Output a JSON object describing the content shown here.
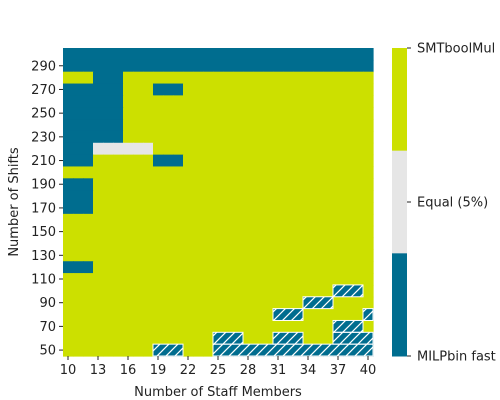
{
  "chart_data": {
    "type": "heatmap",
    "xlabel": "Number of Staff Members",
    "ylabel": "Number of Shifts",
    "x": [
      10,
      11,
      12,
      13,
      14,
      15,
      16,
      17,
      18,
      19,
      20,
      21,
      22,
      23,
      24,
      25,
      26,
      27,
      28,
      29,
      30,
      31,
      32,
      33,
      34,
      35,
      36,
      37,
      38,
      39,
      40
    ],
    "x_tick_labels": [
      "10",
      "13",
      "16",
      "19",
      "22",
      "25",
      "28",
      "31",
      "34",
      "37",
      "40"
    ],
    "y": [
      300,
      290,
      280,
      270,
      260,
      250,
      240,
      230,
      220,
      210,
      200,
      190,
      180,
      170,
      160,
      150,
      140,
      130,
      120,
      110,
      100,
      90,
      80,
      70,
      60,
      50
    ],
    "y_tick_labels": [
      "290",
      "270",
      "250",
      "230",
      "210",
      "190",
      "170",
      "150",
      "130",
      "110",
      "90",
      "70",
      "50"
    ],
    "colorbar": {
      "labels": [
        "SMTboolMul",
        "Equal (5%)",
        "MILPbin fast"
      ],
      "colors": [
        "#cce000",
        "#e6e6e6",
        "#006d8f"
      ]
    },
    "grid_code": "0 = SMTboolMul, 1 = Equal (5%), 2 = MILPbin fast, 3 = MILPbin fast (hatched)",
    "grid": [
      [
        2,
        2,
        2,
        2,
        2,
        2,
        2,
        2,
        2,
        2,
        2,
        2,
        2,
        2,
        2,
        2,
        2,
        2,
        2,
        2,
        2,
        2,
        2,
        2,
        2,
        2,
        2,
        2,
        2,
        2,
        2
      ],
      [
        2,
        2,
        2,
        2,
        2,
        2,
        2,
        2,
        2,
        2,
        2,
        2,
        2,
        2,
        2,
        2,
        2,
        2,
        2,
        2,
        2,
        2,
        2,
        2,
        2,
        2,
        2,
        2,
        2,
        2,
        2
      ],
      [
        0,
        0,
        0,
        2,
        2,
        2,
        0,
        0,
        0,
        0,
        0,
        0,
        0,
        0,
        0,
        0,
        0,
        0,
        0,
        0,
        0,
        0,
        0,
        0,
        0,
        0,
        0,
        0,
        0,
        0,
        0
      ],
      [
        2,
        2,
        2,
        2,
        2,
        2,
        0,
        0,
        0,
        2,
        2,
        2,
        0,
        0,
        0,
        0,
        0,
        0,
        0,
        0,
        0,
        0,
        0,
        0,
        0,
        0,
        0,
        0,
        0,
        0,
        0
      ],
      [
        2,
        2,
        2,
        2,
        2,
        2,
        0,
        0,
        0,
        0,
        0,
        0,
        0,
        0,
        0,
        0,
        0,
        0,
        0,
        0,
        0,
        0,
        0,
        0,
        0,
        0,
        0,
        0,
        0,
        0,
        0
      ],
      [
        2,
        2,
        2,
        2,
        2,
        2,
        0,
        0,
        0,
        0,
        0,
        0,
        0,
        0,
        0,
        0,
        0,
        0,
        0,
        0,
        0,
        0,
        0,
        0,
        0,
        0,
        0,
        0,
        0,
        0,
        0
      ],
      [
        2,
        2,
        2,
        2,
        2,
        2,
        0,
        0,
        0,
        0,
        0,
        0,
        0,
        0,
        0,
        0,
        0,
        0,
        0,
        0,
        0,
        0,
        0,
        0,
        0,
        0,
        0,
        0,
        0,
        0,
        0
      ],
      [
        2,
        2,
        2,
        2,
        2,
        2,
        0,
        0,
        0,
        0,
        0,
        0,
        0,
        0,
        0,
        0,
        0,
        0,
        0,
        0,
        0,
        0,
        0,
        0,
        0,
        0,
        0,
        0,
        0,
        0,
        0
      ],
      [
        2,
        2,
        2,
        1,
        1,
        1,
        1,
        1,
        1,
        0,
        0,
        0,
        0,
        0,
        0,
        0,
        0,
        0,
        0,
        0,
        0,
        0,
        0,
        0,
        0,
        0,
        0,
        0,
        0,
        0,
        0
      ],
      [
        2,
        2,
        2,
        0,
        0,
        0,
        0,
        0,
        0,
        2,
        2,
        2,
        0,
        0,
        0,
        0,
        0,
        0,
        0,
        0,
        0,
        0,
        0,
        0,
        0,
        0,
        0,
        0,
        0,
        0,
        0
      ],
      [
        0,
        0,
        0,
        0,
        0,
        0,
        0,
        0,
        0,
        0,
        0,
        0,
        0,
        0,
        0,
        0,
        0,
        0,
        0,
        0,
        0,
        0,
        0,
        0,
        0,
        0,
        0,
        0,
        0,
        0,
        0
      ],
      [
        2,
        2,
        2,
        0,
        0,
        0,
        0,
        0,
        0,
        0,
        0,
        0,
        0,
        0,
        0,
        0,
        0,
        0,
        0,
        0,
        0,
        0,
        0,
        0,
        0,
        0,
        0,
        0,
        0,
        0,
        0
      ],
      [
        2,
        2,
        2,
        0,
        0,
        0,
        0,
        0,
        0,
        0,
        0,
        0,
        0,
        0,
        0,
        0,
        0,
        0,
        0,
        0,
        0,
        0,
        0,
        0,
        0,
        0,
        0,
        0,
        0,
        0,
        0
      ],
      [
        2,
        2,
        2,
        0,
        0,
        0,
        0,
        0,
        0,
        0,
        0,
        0,
        0,
        0,
        0,
        0,
        0,
        0,
        0,
        0,
        0,
        0,
        0,
        0,
        0,
        0,
        0,
        0,
        0,
        0,
        0
      ],
      [
        0,
        0,
        0,
        0,
        0,
        0,
        0,
        0,
        0,
        0,
        0,
        0,
        0,
        0,
        0,
        0,
        0,
        0,
        0,
        0,
        0,
        0,
        0,
        0,
        0,
        0,
        0,
        0,
        0,
        0,
        0
      ],
      [
        0,
        0,
        0,
        0,
        0,
        0,
        0,
        0,
        0,
        0,
        0,
        0,
        0,
        0,
        0,
        0,
        0,
        0,
        0,
        0,
        0,
        0,
        0,
        0,
        0,
        0,
        0,
        0,
        0,
        0,
        0
      ],
      [
        0,
        0,
        0,
        0,
        0,
        0,
        0,
        0,
        0,
        0,
        0,
        0,
        0,
        0,
        0,
        0,
        0,
        0,
        0,
        0,
        0,
        0,
        0,
        0,
        0,
        0,
        0,
        0,
        0,
        0,
        0
      ],
      [
        0,
        0,
        0,
        0,
        0,
        0,
        0,
        0,
        0,
        0,
        0,
        0,
        0,
        0,
        0,
        0,
        0,
        0,
        0,
        0,
        0,
        0,
        0,
        0,
        0,
        0,
        0,
        0,
        0,
        0,
        0
      ],
      [
        2,
        2,
        2,
        0,
        0,
        0,
        0,
        0,
        0,
        0,
        0,
        0,
        0,
        0,
        0,
        0,
        0,
        0,
        0,
        0,
        0,
        0,
        0,
        0,
        0,
        0,
        0,
        0,
        0,
        0,
        0
      ],
      [
        0,
        0,
        0,
        0,
        0,
        0,
        0,
        0,
        0,
        0,
        0,
        0,
        0,
        0,
        0,
        0,
        0,
        0,
        0,
        0,
        0,
        0,
        0,
        0,
        0,
        0,
        0,
        0,
        0,
        0,
        0
      ],
      [
        0,
        0,
        0,
        0,
        0,
        0,
        0,
        0,
        0,
        0,
        0,
        0,
        0,
        0,
        0,
        0,
        0,
        0,
        0,
        0,
        0,
        0,
        0,
        0,
        0,
        0,
        0,
        3,
        3,
        3,
        0
      ],
      [
        0,
        0,
        0,
        0,
        0,
        0,
        0,
        0,
        0,
        0,
        0,
        0,
        0,
        0,
        0,
        0,
        0,
        0,
        0,
        0,
        0,
        0,
        0,
        0,
        3,
        3,
        3,
        0,
        0,
        0,
        0
      ],
      [
        0,
        0,
        0,
        0,
        0,
        0,
        0,
        0,
        0,
        0,
        0,
        0,
        0,
        0,
        0,
        0,
        0,
        0,
        0,
        0,
        0,
        3,
        3,
        3,
        0,
        0,
        0,
        0,
        0,
        0,
        3
      ],
      [
        0,
        0,
        0,
        0,
        0,
        0,
        0,
        0,
        0,
        0,
        0,
        0,
        0,
        0,
        0,
        0,
        0,
        0,
        0,
        0,
        0,
        0,
        0,
        0,
        0,
        0,
        0,
        3,
        3,
        3,
        0
      ],
      [
        0,
        0,
        0,
        0,
        0,
        0,
        0,
        0,
        0,
        0,
        0,
        0,
        0,
        0,
        0,
        3,
        3,
        3,
        0,
        0,
        0,
        3,
        3,
        3,
        0,
        0,
        0,
        3,
        3,
        3,
        3
      ],
      [
        0,
        0,
        0,
        0,
        0,
        0,
        0,
        0,
        0,
        3,
        3,
        3,
        0,
        0,
        0,
        3,
        3,
        3,
        3,
        3,
        3,
        3,
        3,
        3,
        3,
        3,
        3,
        3,
        3,
        3,
        3
      ]
    ]
  }
}
